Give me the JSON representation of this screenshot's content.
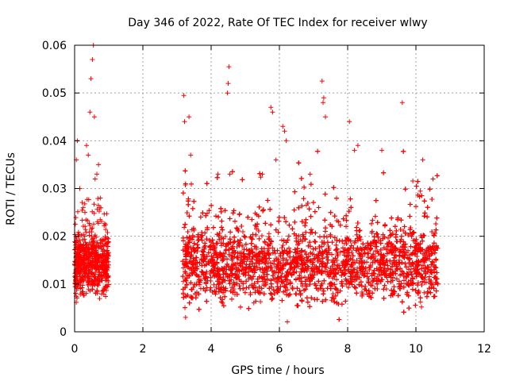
{
  "chart_data": {
    "type": "scatter",
    "title": "Day 346 of 2022, Rate Of TEC Index for receiver wlwy",
    "xlabel": "GPS time / hours",
    "ylabel": "ROTI / TECUs",
    "xlim": [
      0,
      12
    ],
    "ylim": [
      0,
      0.06
    ],
    "xticks": [
      0,
      2,
      4,
      6,
      8,
      10,
      12
    ],
    "xtick_labels": [
      "0",
      "2",
      "4",
      "6",
      "8",
      "10",
      "12"
    ],
    "yticks": [
      0,
      0.01,
      0.02,
      0.03,
      0.04,
      0.05,
      0.06
    ],
    "ytick_labels": [
      "0",
      "0.01",
      "0.02",
      "0.03",
      "0.04",
      "0.05",
      "0.06"
    ],
    "grid": true,
    "marker": "+",
    "color": "#ff0000",
    "series": [
      {
        "name": "ROTI",
        "segments": [
          {
            "x_range": [
              0.0,
              1.0
            ],
            "typical_range": [
              0.006,
              0.022
            ],
            "density": 650,
            "outliers": [
              [
                0.05,
                0.036
              ],
              [
                0.08,
                0.04
              ],
              [
                0.35,
                0.039
              ],
              [
                0.4,
                0.037
              ],
              [
                0.45,
                0.046
              ],
              [
                0.48,
                0.053
              ],
              [
                0.52,
                0.057
              ],
              [
                0.55,
                0.06
              ],
              [
                0.58,
                0.045
              ],
              [
                0.65,
                0.033
              ],
              [
                0.75,
                0.028
              ],
              [
                0.15,
                0.03
              ],
              [
                0.25,
                0.026
              ],
              [
                0.6,
                0.032
              ],
              [
                0.7,
                0.035
              ]
            ]
          },
          {
            "x_range": [
              3.15,
              10.65
            ],
            "typical_range": [
              0.004,
              0.024
            ],
            "density": 5200,
            "outliers": [
              [
                3.2,
                0.0495
              ],
              [
                3.22,
                0.044
              ],
              [
                3.35,
                0.045
              ],
              [
                3.4,
                0.037
              ],
              [
                3.25,
                0.031
              ],
              [
                3.25,
                0.003
              ],
              [
                4.2,
                0.033
              ],
              [
                4.5,
                0.052
              ],
              [
                4.52,
                0.0555
              ],
              [
                4.48,
                0.05
              ],
              [
                4.55,
                0.033
              ],
              [
                5.75,
                0.047
              ],
              [
                5.8,
                0.046
              ],
              [
                5.9,
                0.036
              ],
              [
                6.1,
                0.043
              ],
              [
                6.15,
                0.042
              ],
              [
                6.2,
                0.04
              ],
              [
                7.25,
                0.0525
              ],
              [
                7.3,
                0.049
              ],
              [
                7.28,
                0.048
              ],
              [
                7.35,
                0.045
              ],
              [
                8.05,
                0.044
              ],
              [
                8.2,
                0.038
              ],
              [
                8.3,
                0.039
              ],
              [
                9.6,
                0.048
              ],
              [
                9.0,
                0.038
              ],
              [
                10.2,
                0.036
              ],
              [
                10.5,
                0.032
              ],
              [
                5.5,
                0.033
              ],
              [
                6.9,
                0.033
              ]
            ]
          }
        ]
      }
    ]
  }
}
